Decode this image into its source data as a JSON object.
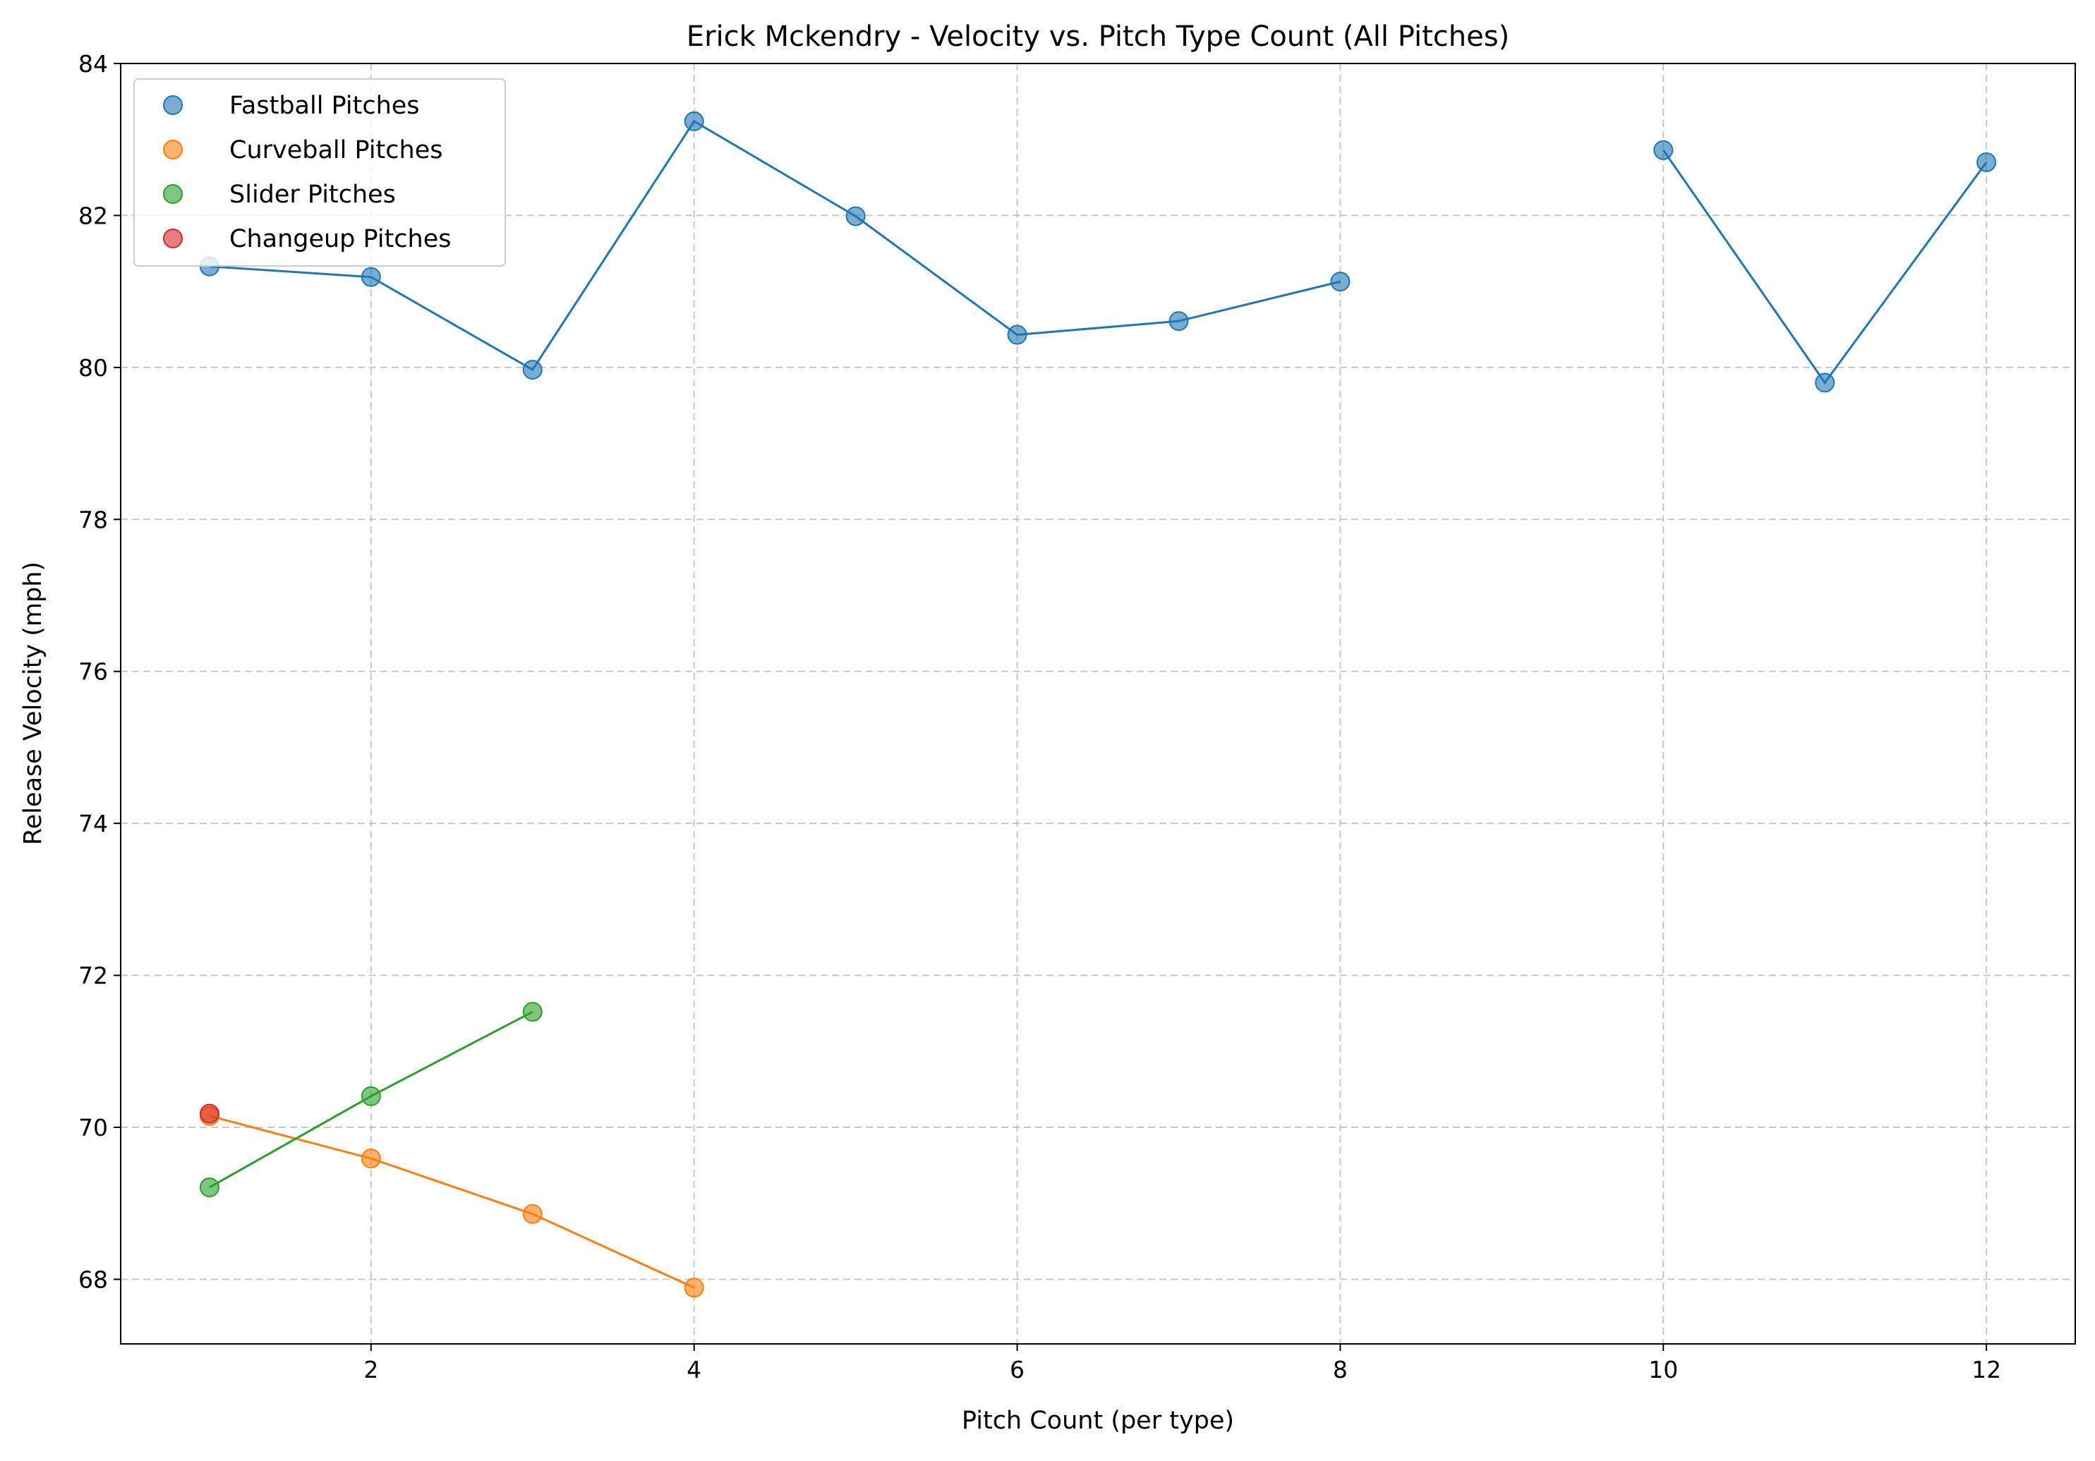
{
  "chart_data": {
    "type": "scatter",
    "title": "Erick Mckendry - Velocity vs. Pitch Type Count (All Pitches)",
    "xlabel": "Pitch Count (per type)",
    "ylabel": "Release Velocity (mph)",
    "xlim": [
      0.45,
      12.55
    ],
    "ylim": [
      67.15,
      84.0
    ],
    "xticks": [
      2,
      4,
      6,
      8,
      10,
      12
    ],
    "yticks": [
      68,
      70,
      72,
      74,
      76,
      78,
      80,
      82,
      84
    ],
    "grid": true,
    "legend_position": "upper-left",
    "series": [
      {
        "name": "Fastball Pitches",
        "color": "#1f77b4",
        "segments": [
          {
            "x": [
              1,
              2,
              3,
              4,
              5,
              6,
              7,
              8
            ],
            "y": [
              81.33,
              81.19,
              79.97,
              83.24,
              81.99,
              80.43,
              80.61,
              81.13
            ]
          },
          {
            "x": [
              10,
              11,
              12
            ],
            "y": [
              82.86,
              79.8,
              82.7
            ]
          }
        ]
      },
      {
        "name": "Curveball Pitches",
        "color": "#ff7f0e",
        "segments": [
          {
            "x": [
              1,
              2,
              3,
              4
            ],
            "y": [
              70.15,
              69.59,
              68.86,
              67.89
            ]
          }
        ]
      },
      {
        "name": "Slider Pitches",
        "color": "#2ca02c",
        "segments": [
          {
            "x": [
              1,
              2,
              3
            ],
            "y": [
              69.21,
              70.41,
              71.52
            ]
          }
        ]
      },
      {
        "name": "Changeup Pitches",
        "color": "#d62728",
        "segments": [
          {
            "x": [
              1
            ],
            "y": [
              70.18
            ]
          }
        ]
      }
    ]
  }
}
